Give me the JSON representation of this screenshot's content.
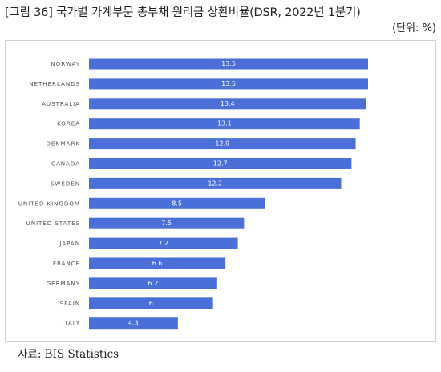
{
  "header": {
    "title": "[그림 36] 국가별 가계부문 총부채 원리금 상환비율(DSR, 2022년 1분기)",
    "unit": "(단위: %)"
  },
  "footer": {
    "source": "자료: BIS Statistics"
  },
  "colors": {
    "bar": "#4a6fd8",
    "bar_label": "#ffffff",
    "category_label": "#555555"
  },
  "chart_data": {
    "type": "bar",
    "orientation": "horizontal",
    "title": "",
    "xlabel": "",
    "ylabel": "",
    "categories": [
      "NORWAY",
      "NETHERLANDS",
      "AUSTRALIA",
      "KOREA",
      "DENMARK",
      "CANADA",
      "SWEDEN",
      "UNITED KINGDOM",
      "UNITED STATES",
      "JAPAN",
      "FRANCE",
      "GERMANY",
      "SPAIN",
      "ITALY"
    ],
    "values": [
      13.5,
      13.5,
      13.4,
      13.1,
      12.9,
      12.7,
      12.2,
      8.5,
      7.5,
      7.2,
      6.6,
      6.2,
      6,
      4.3
    ],
    "value_labels": [
      "13.5",
      "13.5",
      "13.4",
      "13.1",
      "12.9",
      "12.7",
      "12.2",
      "8.5",
      "7.5",
      "7.2",
      "6.6",
      "6.2",
      "6",
      "4.3"
    ],
    "xlim": [
      0,
      13.5
    ],
    "grid": false,
    "legend": "none"
  }
}
